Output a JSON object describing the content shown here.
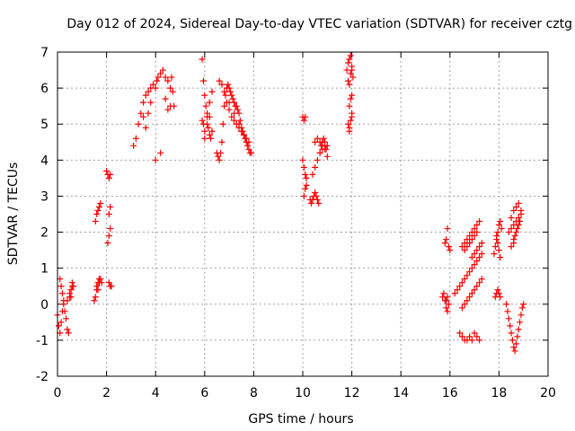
{
  "chart_data": {
    "type": "scatter",
    "title": "Day 012 of 2024, Sidereal Day-to-day VTEC variation (SDTVAR) for receiver cztg",
    "xlabel": "GPS time / hours",
    "ylabel": "SDTVAR / TECUs",
    "xlim": [
      0,
      20
    ],
    "ylim": [
      -2,
      7
    ],
    "xticks": [
      0,
      2,
      4,
      6,
      8,
      10,
      12,
      14,
      16,
      18,
      20
    ],
    "yticks": [
      -2,
      -1,
      0,
      1,
      2,
      3,
      4,
      5,
      6,
      7
    ],
    "grid": true,
    "marker": "+",
    "color": "#ff0000",
    "series": [
      {
        "name": "SDTVAR",
        "x": [
          0.0,
          0.05,
          0.1,
          0.15,
          0.2,
          0.25,
          0.1,
          0.15,
          0.2,
          0.25,
          0.3,
          0.35,
          0.4,
          0.45,
          0.5,
          0.55,
          0.6,
          0.65,
          0.4,
          0.5,
          0.55,
          0.6,
          1.5,
          1.55,
          1.6,
          1.65,
          1.7,
          1.55,
          1.6,
          1.65,
          1.7,
          1.75,
          1.6,
          1.65,
          1.7,
          1.75,
          1.8,
          2.0,
          2.05,
          2.1,
          2.15,
          2.05,
          2.1,
          2.15,
          2.1,
          2.15,
          2.2,
          2.1,
          2.15,
          3.1,
          3.2,
          3.3,
          3.4,
          3.5,
          3.6,
          3.7,
          3.8,
          3.9,
          4.0,
          4.05,
          4.1,
          4.2,
          4.3,
          4.4,
          4.5,
          4.6,
          4.65,
          4.7,
          4.75,
          3.5,
          3.6,
          3.7,
          3.8,
          4.0,
          4.2,
          4.4,
          4.5,
          4.6,
          5.9,
          5.95,
          6.0,
          6.05,
          6.1,
          6.15,
          6.2,
          6.25,
          6.3,
          5.95,
          6.0,
          6.1,
          6.2,
          6.3,
          5.9,
          6.0,
          6.1,
          6.2,
          6.5,
          6.55,
          6.6,
          6.65,
          6.7,
          6.75,
          6.8,
          6.85,
          6.9,
          6.95,
          7.0,
          7.05,
          7.1,
          7.15,
          7.2,
          7.25,
          7.3,
          7.35,
          7.4,
          7.45,
          7.5,
          7.55,
          7.6,
          7.65,
          7.7,
          7.75,
          7.8,
          7.85,
          7.9,
          6.6,
          6.7,
          6.8,
          6.9,
          7.0,
          7.1,
          7.2,
          7.3,
          7.4,
          7.5,
          7.6,
          7.7,
          7.8,
          7.0,
          7.2,
          7.4,
          7.6,
          10.0,
          10.05,
          10.1,
          10.15,
          10.05,
          10.1,
          10.15,
          10.0,
          10.05,
          10.1,
          10.3,
          10.35,
          10.4,
          10.45,
          10.5,
          10.55,
          10.6,
          10.65,
          10.7,
          10.75,
          10.8,
          10.85,
          10.9,
          10.95,
          11.0,
          10.4,
          10.5,
          10.6,
          10.7,
          10.8,
          10.9,
          11.0,
          10.5,
          10.6,
          10.7,
          10.8,
          10.9,
          11.8,
          11.85,
          11.9,
          11.95,
          12.0,
          12.05,
          11.85,
          11.9,
          11.95,
          12.0,
          11.85,
          11.9,
          11.95,
          12.0,
          11.9,
          11.95,
          12.0,
          11.9,
          12.0,
          15.7,
          15.75,
          15.8,
          15.85,
          15.9,
          15.95,
          15.8,
          15.85,
          15.9,
          15.95,
          16.0,
          15.9,
          15.85,
          16.2,
          16.3,
          16.4,
          16.5,
          16.6,
          16.7,
          16.8,
          16.9,
          17.0,
          17.1,
          17.2,
          17.3,
          16.4,
          16.5,
          16.6,
          16.7,
          16.8,
          16.9,
          17.0,
          17.1,
          17.2,
          16.5,
          16.6,
          16.7,
          16.8,
          16.9,
          17.0,
          17.1,
          17.2,
          16.9,
          17.0,
          17.1,
          17.2,
          17.3,
          16.5,
          16.6,
          16.7,
          16.8,
          16.9,
          17.0,
          17.1,
          17.2,
          17.3,
          16.8,
          16.9,
          17.0,
          17.1,
          16.6,
          16.7,
          16.8,
          17.8,
          17.85,
          17.9,
          17.95,
          18.0,
          18.05,
          18.1,
          17.85,
          17.9,
          17.95,
          18.0,
          18.05,
          17.9,
          17.95,
          18.0,
          18.05,
          18.3,
          18.35,
          18.4,
          18.45,
          18.5,
          18.55,
          18.6,
          18.65,
          18.7,
          18.75,
          18.8,
          18.85,
          18.9,
          18.95,
          19.0,
          18.4,
          18.5,
          18.6,
          18.7,
          18.8,
          18.9,
          18.5,
          18.6,
          18.7,
          18.8,
          18.9,
          18.6,
          18.65,
          18.7,
          18.75,
          18.8,
          18.85,
          18.5,
          18.6
        ],
        "y": [
          -0.3,
          -0.6,
          -0.8,
          -0.5,
          -0.2,
          0.1,
          0.7,
          0.5,
          0.3,
          0.0,
          -0.2,
          -0.4,
          -0.7,
          -0.8,
          0.2,
          0.4,
          0.6,
          0.5,
          0.1,
          0.3,
          0.2,
          0.5,
          0.1,
          0.2,
          0.4,
          0.6,
          0.7,
          2.3,
          2.5,
          2.6,
          2.7,
          2.8,
          0.5,
          0.4,
          0.6,
          0.7,
          0.6,
          3.7,
          3.6,
          3.5,
          3.6,
          1.7,
          1.9,
          2.1,
          2.5,
          2.7,
          0.5,
          0.6,
          0.5,
          4.4,
          4.6,
          5.0,
          5.3,
          5.6,
          5.8,
          5.9,
          6.0,
          6.1,
          6.0,
          6.2,
          6.3,
          6.4,
          6.5,
          6.3,
          6.2,
          6.0,
          6.3,
          5.9,
          5.5,
          5.2,
          4.9,
          5.3,
          5.6,
          4.0,
          4.2,
          5.7,
          5.4,
          5.5,
          6.8,
          6.2,
          5.8,
          5.5,
          5.2,
          4.9,
          4.7,
          4.6,
          4.8,
          5.0,
          4.6,
          5.3,
          5.6,
          5.9,
          5.1,
          4.8,
          5.0,
          5.2,
          4.2,
          4.1,
          4.0,
          4.2,
          4.5,
          5.0,
          5.5,
          5.8,
          6.0,
          6.1,
          6.0,
          5.9,
          5.8,
          5.7,
          5.6,
          5.5,
          5.5,
          5.4,
          5.3,
          5.1,
          4.9,
          4.8,
          4.7,
          4.6,
          4.5,
          4.4,
          4.3,
          4.2,
          4.2,
          6.2,
          6.1,
          5.9,
          5.6,
          5.4,
          5.2,
          5.1,
          5.0,
          4.9,
          4.8,
          4.7,
          4.6,
          4.5,
          5.6,
          5.3,
          5.0,
          4.7,
          4.0,
          3.8,
          3.6,
          3.3,
          3.0,
          3.2,
          3.5,
          5.2,
          5.1,
          5.2,
          2.9,
          2.8,
          2.9,
          3.0,
          3.1,
          3.0,
          2.9,
          2.8,
          4.2,
          4.4,
          4.5,
          4.6,
          4.5,
          4.3,
          4.1,
          3.6,
          3.8,
          4.0,
          4.2,
          4.3,
          4.4,
          4.4,
          4.5,
          4.6,
          4.5,
          4.4,
          4.3,
          6.5,
          6.7,
          6.8,
          6.9,
          6.6,
          6.3,
          6.2,
          6.1,
          6.4,
          6.5,
          5.0,
          4.8,
          5.1,
          5.3,
          5.5,
          5.7,
          5.8,
          4.9,
          5.2,
          0.2,
          0.3,
          0.1,
          -0.1,
          -0.2,
          0.0,
          1.7,
          1.8,
          2.1,
          1.6,
          1.5,
          0.2,
          0.1,
          0.3,
          0.4,
          0.5,
          0.6,
          0.7,
          0.8,
          0.9,
          1.0,
          1.1,
          1.2,
          1.3,
          1.4,
          -0.8,
          -0.9,
          -1.0,
          -1.0,
          -0.9,
          -1.0,
          -0.8,
          -0.9,
          -1.0,
          1.6,
          1.7,
          1.8,
          1.9,
          2.0,
          2.1,
          2.2,
          2.3,
          1.3,
          1.4,
          1.5,
          1.6,
          1.7,
          -0.1,
          0.0,
          0.1,
          0.2,
          0.3,
          0.4,
          0.5,
          0.6,
          0.7,
          1.7,
          1.8,
          1.9,
          2.0,
          1.5,
          1.6,
          1.7,
          1.4,
          1.6,
          1.8,
          2.0,
          2.2,
          2.3,
          2.1,
          0.2,
          0.3,
          0.4,
          0.3,
          0.2,
          1.9,
          1.7,
          1.5,
          1.3,
          0.0,
          -0.2,
          -0.4,
          -0.6,
          -0.8,
          -1.0,
          -1.2,
          -1.3,
          -1.1,
          -0.9,
          -0.7,
          -0.5,
          -0.3,
          -0.1,
          0.0,
          2.0,
          2.1,
          2.2,
          2.3,
          2.4,
          2.5,
          2.4,
          2.6,
          2.7,
          2.8,
          2.6,
          1.8,
          1.9,
          2.0,
          2.1,
          2.2,
          2.3,
          1.6,
          1.7
        ]
      }
    ]
  }
}
